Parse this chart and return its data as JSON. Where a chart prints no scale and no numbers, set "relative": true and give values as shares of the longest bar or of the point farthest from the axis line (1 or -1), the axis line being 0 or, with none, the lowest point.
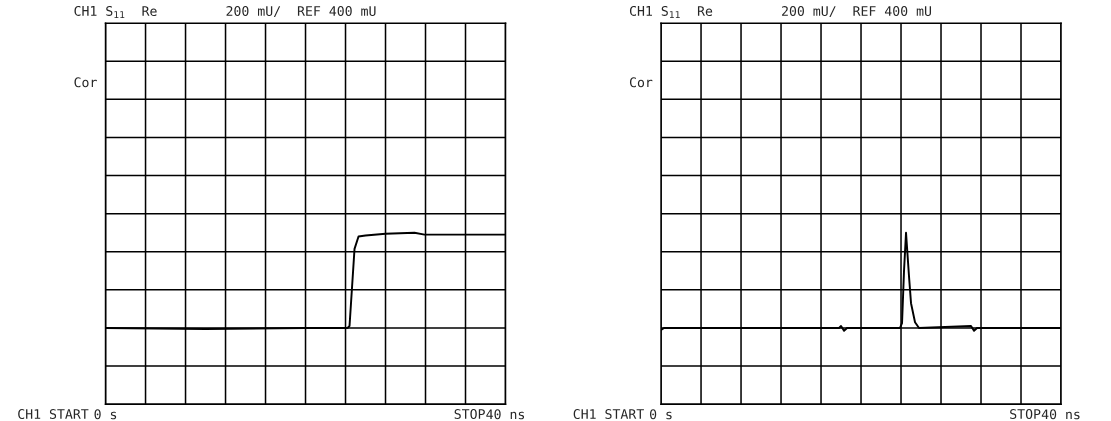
{
  "chart_data": [
    {
      "type": "line",
      "relative": true,
      "annotations": [
        "CH1 S$_{11}$",
        "Re",
        "200 mU/  REF 400 mU",
        "Cor",
        "CH1 START",
        "STOP"
      ],
      "xlim": [
        0,
        40
      ],
      "xticks": [
        {
          "value": 0,
          "label": "0 s"
        },
        {
          "value": 4,
          "label": null
        },
        {
          "value": 8,
          "label": null
        },
        {
          "value": 12,
          "label": null
        },
        {
          "value": 16,
          "label": null
        },
        {
          "value": 20,
          "label": null
        },
        {
          "value": 24,
          "label": null
        },
        {
          "value": 28,
          "label": null
        },
        {
          "value": 32,
          "label": null
        },
        {
          "value": 36,
          "label": null
        },
        {
          "value": 40,
          "label": "40 ns"
        }
      ],
      "grid": true,
      "legend": false,
      "marker": "none",
      "line_style": "solid",
      "series": [
        {
          "color": "#000000",
          "x": [
            0,
            10,
            20,
            24.2,
            24.4,
            24.9,
            25.3,
            26.0,
            28.0,
            30.9,
            31.9,
            40
          ],
          "values": [
            0,
            -0.01,
            0,
            0,
            0.02,
            0.83,
            0.96,
            0.97,
            0.99,
            1,
            0.98,
            0.98
          ]
        }
      ]
    },
    {
      "type": "line",
      "relative": true,
      "annotations": [
        "CH1 S$_{11}$",
        "Re",
        "200 mU/  REF 400 mU",
        "Cor",
        "CH1 START",
        "STOP"
      ],
      "xlim": [
        0,
        40
      ],
      "xticks": [
        {
          "value": 0,
          "label": "0 s"
        },
        {
          "value": 4,
          "label": null
        },
        {
          "value": 8,
          "label": null
        },
        {
          "value": 12,
          "label": null
        },
        {
          "value": 16,
          "label": null
        },
        {
          "value": 20,
          "label": null
        },
        {
          "value": 24,
          "label": null
        },
        {
          "value": 28,
          "label": null
        },
        {
          "value": 32,
          "label": null
        },
        {
          "value": 36,
          "label": null
        },
        {
          "value": 40,
          "label": "40 ns"
        }
      ],
      "grid": true,
      "legend": false,
      "marker": "none",
      "line_style": "solid",
      "series": [
        {
          "color": "#000000",
          "x": [
            0,
            0.3,
            17.8,
            18.0,
            18.3,
            18.6,
            23.9,
            24.1,
            24.3,
            24.5,
            24.8,
            25.0,
            25.4,
            25.8,
            31.0,
            31.3,
            31.6,
            40
          ],
          "values": [
            -0.02,
            0,
            0,
            0.02,
            -0.03,
            0,
            0,
            0.05,
            0.6,
            1,
            0.54,
            0.26,
            0.06,
            0,
            0.02,
            -0.03,
            0,
            0
          ]
        }
      ]
    }
  ]
}
